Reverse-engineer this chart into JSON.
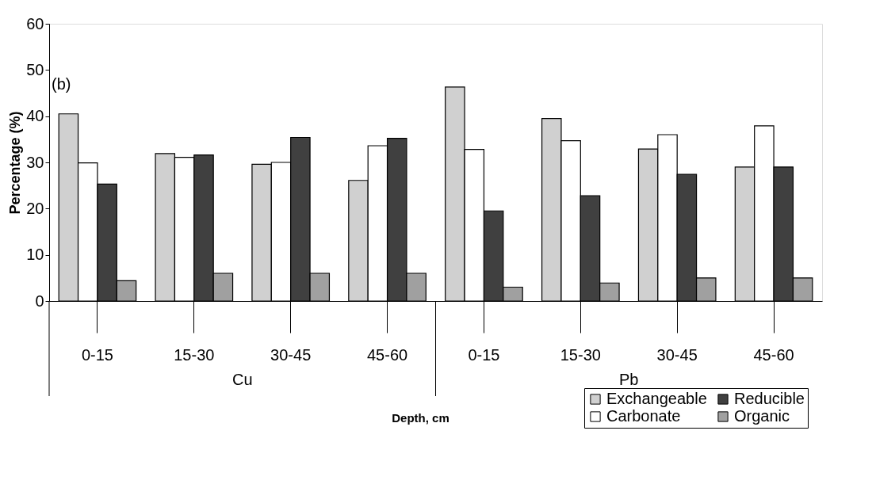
{
  "chart_data": {
    "type": "bar",
    "ylabel": "Percentage (%)",
    "xlabel": "Depth, cm",
    "categories": [
      "0-15",
      "15-30",
      "30-45",
      "45-60",
      "0-15",
      "15-30",
      "30-45",
      "45-60"
    ],
    "annotations": [
      "(b)",
      "Cu",
      "Pb"
    ],
    "ylim": [
      0,
      60
    ],
    "yticks": [
      0,
      10,
      20,
      30,
      40,
      50,
      60
    ],
    "grid": false,
    "legend": "bottom right",
    "series": [
      {
        "name": "Exchangeable",
        "color": "#d0d0d0",
        "values": [
          40.5,
          31.9,
          29.6,
          26.1,
          46.3,
          39.5,
          32.9,
          29.0
        ]
      },
      {
        "name": "Carbonate",
        "color": "#ffffff",
        "values": [
          29.9,
          31.1,
          30.0,
          33.6,
          32.8,
          34.7,
          36.0,
          37.9
        ]
      },
      {
        "name": "Reducible",
        "color": "#404040",
        "values": [
          25.3,
          31.6,
          35.4,
          35.2,
          19.5,
          22.8,
          27.4,
          29.0
        ]
      },
      {
        "name": "Organic",
        "color": "#a0a0a0",
        "values": [
          4.4,
          6.0,
          6.0,
          6.0,
          3.0,
          3.9,
          5.0,
          5.0
        ]
      }
    ]
  }
}
